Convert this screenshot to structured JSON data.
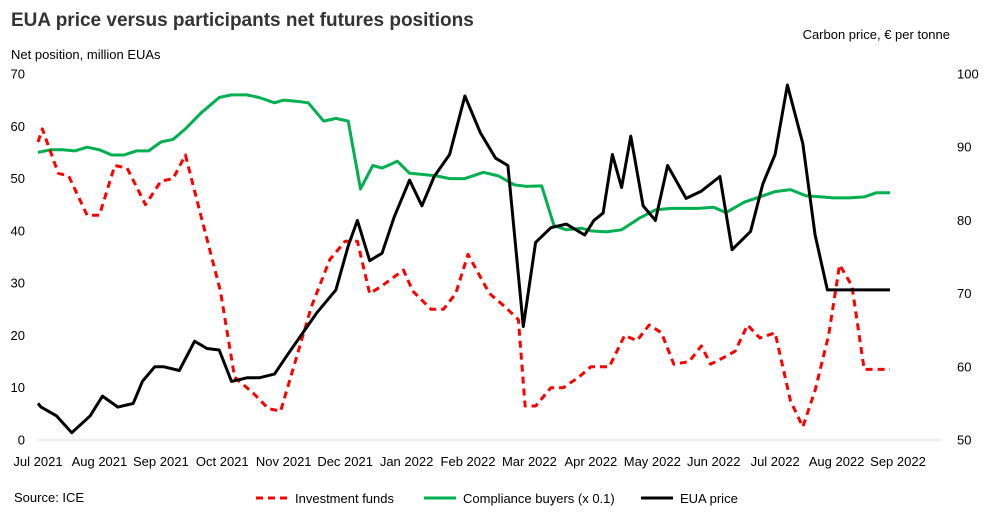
{
  "chart_data": {
    "type": "line",
    "title": "EUA price versus participants net futures positions",
    "ylabel": "Net position, million EUAs",
    "y2label": "Carbon price, € per tonne",
    "source": "Source: ICE",
    "ylim": [
      0,
      70
    ],
    "y2lim": [
      50,
      100
    ],
    "xlim": [
      0,
      14.7
    ],
    "yticks": [
      0,
      10,
      20,
      30,
      40,
      50,
      60,
      70
    ],
    "y2ticks": [
      50,
      60,
      70,
      80,
      90,
      100
    ],
    "xticks": [
      {
        "pos": 0,
        "label": "Jul 2021"
      },
      {
        "pos": 1,
        "label": "Aug 2021"
      },
      {
        "pos": 2,
        "label": "Sep 2021"
      },
      {
        "pos": 3,
        "label": "Oct 2021"
      },
      {
        "pos": 4,
        "label": "Nov 2021"
      },
      {
        "pos": 5,
        "label": "Dec 2021"
      },
      {
        "pos": 6,
        "label": "Jan 2022"
      },
      {
        "pos": 7,
        "label": "Feb 2022"
      },
      {
        "pos": 8,
        "label": "Mar 2022"
      },
      {
        "pos": 9,
        "label": "Apr 2022"
      },
      {
        "pos": 10,
        "label": "May 2022"
      },
      {
        "pos": 11,
        "label": "Jun 2022"
      },
      {
        "pos": 12,
        "label": "Jul 2022"
      },
      {
        "pos": 13,
        "label": "Aug 2022"
      },
      {
        "pos": 14,
        "label": "Sep 2022"
      }
    ],
    "series": [
      {
        "name": "Investment funds",
        "axis": "left",
        "color": "#ff0000",
        "dash": "dashed",
        "x": [
          0,
          0.07,
          0.33,
          0.5,
          0.8,
          1.0,
          1.25,
          1.45,
          1.75,
          2.0,
          2.2,
          2.4,
          2.65,
          2.97,
          3.2,
          3.5,
          3.75,
          3.95,
          4.2,
          4.45,
          4.75,
          5.0,
          5.2,
          5.4,
          5.6,
          5.95,
          6.1,
          6.4,
          6.6,
          6.8,
          7.0,
          7.35,
          7.6,
          7.82,
          7.93,
          8.1,
          8.35,
          8.55,
          8.8,
          9.0,
          9.3,
          9.55,
          9.75,
          9.95,
          10.15,
          10.35,
          10.6,
          10.8,
          10.95,
          11.2,
          11.35,
          11.55,
          11.75,
          12.0,
          12.25,
          12.45,
          12.65,
          12.87,
          13.05,
          13.25,
          13.45,
          13.67,
          13.8,
          13.87
        ],
        "values": [
          57.0,
          59.5,
          51.0,
          50.5,
          43.0,
          43.0,
          52.5,
          52.0,
          45.0,
          49.5,
          50.0,
          54.5,
          43.0,
          28.5,
          12.0,
          9.0,
          6.0,
          5.5,
          15.5,
          25.5,
          34.5,
          38.0,
          38.0,
          28.0,
          29.5,
          32.5,
          28.5,
          25.0,
          25.0,
          28.0,
          35.5,
          28.0,
          25.5,
          23.0,
          6.5,
          6.5,
          10.0,
          10.0,
          12.0,
          14.0,
          14.0,
          20.0,
          19.0,
          22.0,
          20.5,
          14.5,
          15.0,
          18.0,
          14.5,
          16.0,
          17.0,
          22.0,
          19.5,
          20.5,
          7.5,
          2.5,
          9.5,
          20.0,
          33.5,
          29.5,
          13.5,
          13.5,
          13.5,
          13.5
        ]
      },
      {
        "name": "Compliance buyers (x 0.1)",
        "axis": "left",
        "color": "#00b050",
        "dash": "solid",
        "x": [
          0,
          0.2,
          0.4,
          0.6,
          0.8,
          1.0,
          1.2,
          1.4,
          1.6,
          1.8,
          2.0,
          2.2,
          2.4,
          2.65,
          2.95,
          3.15,
          3.4,
          3.6,
          3.85,
          4.0,
          4.2,
          4.4,
          4.65,
          4.85,
          5.05,
          5.25,
          5.45,
          5.6,
          5.85,
          6.05,
          6.25,
          6.5,
          6.7,
          6.95,
          7.25,
          7.5,
          7.75,
          7.95,
          8.2,
          8.4,
          8.6,
          8.85,
          9.0,
          9.25,
          9.5,
          9.8,
          10.05,
          10.3,
          10.5,
          10.75,
          11.0,
          11.2,
          11.5,
          11.75,
          12.0,
          12.25,
          12.5,
          12.75,
          12.95,
          13.2,
          13.45,
          13.65,
          13.87
        ],
        "values": [
          55.0,
          55.5,
          55.5,
          55.3,
          56.0,
          55.5,
          54.5,
          54.5,
          55.3,
          55.3,
          57.0,
          57.5,
          59.5,
          62.5,
          65.5,
          66.0,
          66.0,
          65.5,
          64.5,
          65.0,
          64.8,
          64.5,
          61.0,
          61.5,
          61.0,
          48.0,
          52.5,
          52.0,
          53.3,
          51.0,
          50.8,
          50.5,
          50.0,
          50.0,
          51.2,
          50.5,
          48.8,
          48.5,
          48.6,
          41.0,
          40.2,
          40.5,
          40.0,
          39.8,
          40.2,
          42.5,
          44.0,
          44.3,
          44.3,
          44.3,
          44.5,
          43.5,
          45.5,
          46.5,
          47.5,
          47.9,
          46.7,
          46.5,
          46.3,
          46.3,
          46.5,
          47.3,
          47.3
        ]
      },
      {
        "name": "EUA price",
        "axis": "right",
        "color": "#000000",
        "dash": "solid",
        "x": [
          0,
          0.05,
          0.3,
          0.55,
          0.85,
          1.05,
          1.3,
          1.55,
          1.7,
          1.9,
          2.05,
          2.3,
          2.55,
          2.75,
          2.95,
          3.15,
          3.4,
          3.6,
          3.85,
          4.05,
          4.3,
          4.55,
          4.85,
          5.05,
          5.2,
          5.4,
          5.6,
          5.8,
          6.05,
          6.25,
          6.45,
          6.7,
          6.95,
          7.2,
          7.45,
          7.65,
          7.9,
          8.1,
          8.35,
          8.6,
          8.9,
          9.05,
          9.2,
          9.35,
          9.5,
          9.65,
          9.85,
          10.05,
          10.25,
          10.55,
          10.8,
          11.1,
          11.3,
          11.6,
          11.8,
          12.0,
          12.2,
          12.45,
          12.65,
          12.85,
          13.05,
          13.25,
          13.45,
          13.55,
          13.7,
          13.87
        ],
        "values": [
          55.0,
          54.5,
          53.3,
          51.0,
          53.3,
          56.0,
          54.5,
          55.0,
          58.0,
          60.0,
          60.0,
          59.5,
          63.5,
          62.5,
          62.3,
          58.0,
          58.5,
          58.5,
          59.0,
          61.5,
          64.5,
          67.5,
          70.5,
          76.5,
          80.0,
          74.5,
          75.5,
          80.5,
          85.5,
          82.0,
          86.0,
          89.0,
          97.0,
          92.0,
          88.5,
          87.5,
          65.5,
          77.0,
          79.0,
          79.5,
          78.0,
          80.0,
          81.0,
          89.0,
          84.5,
          91.5,
          82.0,
          80.0,
          87.5,
          83.0,
          84.0,
          86.0,
          76.0,
          78.5,
          85.0,
          89.0,
          98.5,
          90.5,
          78.0,
          70.5,
          70.5,
          70.5,
          70.5,
          70.5,
          70.5,
          70.5
        ]
      }
    ],
    "legend_position": "bottom"
  }
}
